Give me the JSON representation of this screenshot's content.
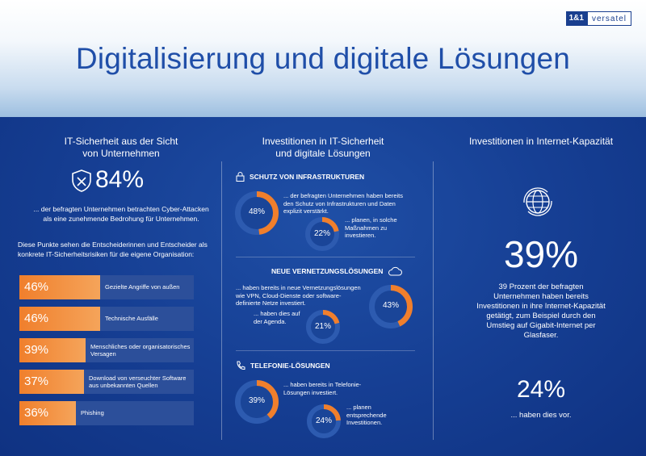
{
  "brand": {
    "box": "1&1",
    "text": "versatel"
  },
  "title": "Digitalisierung und digitale Lösungen",
  "col1": {
    "title": "IT-Sicherheit aus der Sicht\nvon Unternehmen",
    "big_percent": "84%",
    "desc": "... der befragten Unternehmen betrachten Cyber-Attacken als eine zunehmende Bedrohung für Unternehmen.",
    "intro": "Diese Punkte sehen die Entscheiderinnen und Entscheider als konkrete IT-Sicherheitsrisiken für die eigene Organisation:",
    "risks": [
      {
        "pct": "46%",
        "label": "Gezielte Angriffe von außen"
      },
      {
        "pct": "46%",
        "label": "Technische Ausfälle"
      },
      {
        "pct": "39%",
        "label": "Menschliches oder organisatorisches Versagen"
      },
      {
        "pct": "37%",
        "label": "Download von verseuchter Software aus unbekannten Quellen"
      },
      {
        "pct": "36%",
        "label": "Phishing"
      }
    ]
  },
  "col2": {
    "title": "Investitionen in IT-Sicherheit\nund digitale Lösungen",
    "sections": [
      {
        "head": "SCHUTZ VON INFRASTRUKTUREN",
        "a_pct": "48%",
        "a_value": 48,
        "a_text": "... der befragten Unternehmen haben bereits den Schutz von Infrastrukturen und Daten explizit verstärkt.",
        "b_pct": "22%",
        "b_value": 22,
        "b_text": "... planen, in solche Maßnahmen zu investieren."
      },
      {
        "head": "NEUE VERNETZUNGSLÖSUNGEN",
        "a_pct": "43%",
        "a_value": 43,
        "a_text": "... haben bereits in neue Vernetzungslösungen wie VPN, Cloud-Dienste oder software-definierte Netze investiert.",
        "b_pct": "21%",
        "b_value": 21,
        "b_text": "... haben dies auf der Agenda."
      },
      {
        "head": "TELEFONIE-LÖSUNGEN",
        "a_pct": "39%",
        "a_value": 39,
        "a_text": "... haben bereits in Telefonie-Lösungen investiert.",
        "b_pct": "24%",
        "b_value": 24,
        "b_text": "... planen entsprechende Investitionen."
      }
    ]
  },
  "col3": {
    "title": "Investitionen in Internet-Kapazität",
    "big_percent": "39%",
    "desc": "39 Prozent der befragten Unternehmen haben bereits Investitionen in ihre Internet-Kapazität getätigt, zum Beispiel durch den Umstieg auf Gigabit-Internet per Glasfaser.",
    "big_percent2": "24%",
    "desc2": "... haben dies vor."
  },
  "colors": {
    "accent": "#f07f2c",
    "background": "#163f94",
    "title": "#1f4ea8"
  },
  "icons": [
    "shield-icon",
    "lock-icon",
    "cloud-icon",
    "phone-icon",
    "globe-icon"
  ]
}
